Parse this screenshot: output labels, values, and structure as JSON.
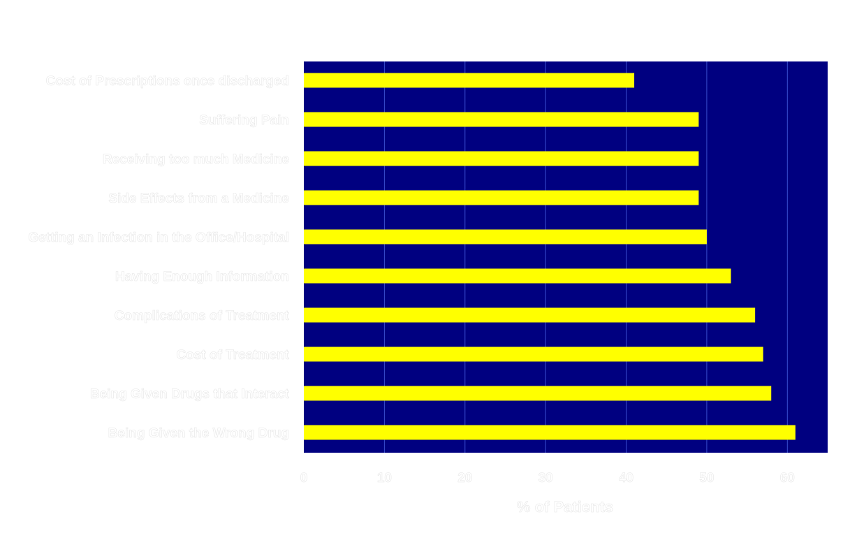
{
  "chart_data": {
    "type": "bar",
    "orientation": "horizontal",
    "categories": [
      "Cost of Prescriptions once discharged",
      "Suffering Pain",
      "Receiving too much Medicine",
      "Side Effects from a Medicine",
      "Getting an Infection in the Office/Hospital",
      "Having Enough Information",
      "Complications of Treatment",
      "Cost of Treatment",
      "Being Given Drugs that Interact",
      "Being Given the Wrong Drug"
    ],
    "values": [
      41,
      49,
      49,
      49,
      50,
      53,
      56,
      57,
      58,
      61
    ],
    "xlabel": "% of Patients",
    "ylabel": "",
    "xlim": [
      0,
      65
    ],
    "xticks": [
      "0",
      "10",
      "20",
      "30",
      "40",
      "50",
      "60"
    ],
    "grid": "vertical",
    "colors": {
      "plot_background": "#000080",
      "bar": "#ffff00",
      "gridline": "#3a4fd0",
      "text": "#ffffff"
    }
  }
}
